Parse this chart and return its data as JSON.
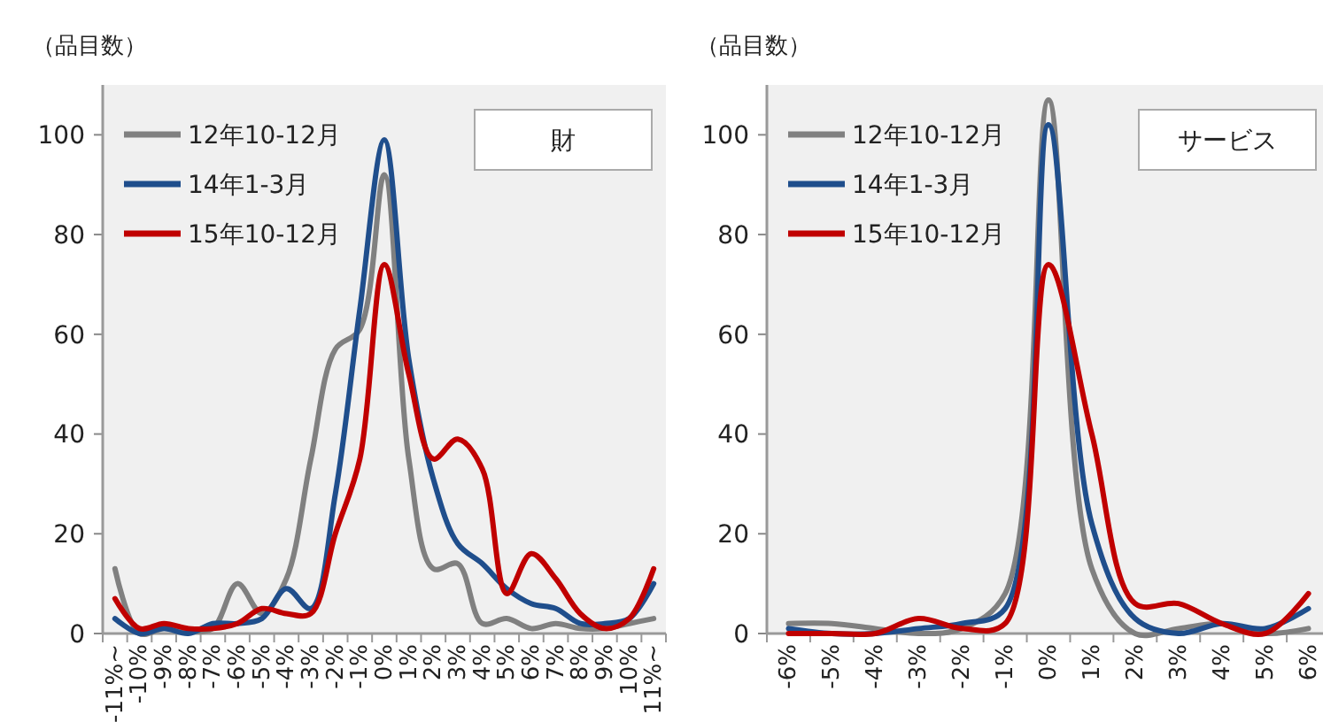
{
  "chart_data": [
    {
      "type": "line",
      "ylabel": "（品目数）",
      "annotations": [
        "財"
      ],
      "legend": "top left",
      "ylim": [
        0,
        110
      ],
      "yticks": [
        0,
        20,
        40,
        60,
        80,
        100
      ],
      "categories": [
        "-11%~",
        "-10%",
        "-9%",
        "-8%",
        "-7%",
        "-6%",
        "-5%",
        "-4%",
        "-3%",
        "-2%",
        "-1%",
        "0%",
        "1%",
        "2%",
        "3%",
        "4%",
        "5%",
        "6%",
        "7%",
        "8%",
        "9%",
        "10%",
        "11%~"
      ],
      "series": [
        {
          "name": "12年10-12月",
          "color": "#808080",
          "values": [
            13,
            0,
            1,
            0.5,
            1,
            10,
            4,
            11,
            35,
            57,
            61,
            92,
            35,
            13,
            14,
            2,
            3,
            1,
            2,
            1,
            1,
            2,
            3
          ]
        },
        {
          "name": "14年1-3月",
          "color": "#1f4e8c",
          "values": [
            3,
            0,
            1,
            0,
            2,
            2,
            3,
            9,
            5,
            28,
            65,
            99,
            55,
            31,
            18,
            14,
            9,
            6,
            5,
            2,
            2,
            3,
            10
          ]
        },
        {
          "name": "15年10-12月",
          "color": "#c00000",
          "values": [
            7,
            1,
            2,
            1,
            1,
            2,
            5,
            4,
            4,
            20,
            35,
            74,
            52,
            35,
            39,
            33,
            8,
            16,
            11,
            4,
            1,
            3,
            13
          ]
        }
      ]
    },
    {
      "type": "line",
      "ylabel": "（品目数）",
      "annotations": [
        "サービス"
      ],
      "legend": "top left",
      "ylim": [
        0,
        110
      ],
      "yticks": [
        0,
        20,
        40,
        60,
        80,
        100
      ],
      "categories": [
        "-6%",
        "-5%",
        "-4%",
        "-3%",
        "-2%",
        "-1%",
        "0%",
        "1%",
        "2%",
        "3%",
        "4%",
        "5%",
        "6%"
      ],
      "series": [
        {
          "name": "12年10-12月",
          "color": "#808080",
          "values": [
            2,
            2,
            1,
            0,
            1,
            8,
            107,
            13,
            0,
            1,
            2,
            0,
            1
          ]
        },
        {
          "name": "14年1-3月",
          "color": "#1f4e8c",
          "values": [
            1,
            0,
            0,
            1,
            2,
            5,
            102,
            22,
            3,
            0,
            2,
            1,
            5
          ]
        },
        {
          "name": "15年10-12月",
          "color": "#c00000",
          "values": [
            0,
            0,
            0,
            3,
            1,
            2,
            74,
            40,
            6,
            6,
            2,
            0,
            8
          ]
        }
      ]
    }
  ]
}
